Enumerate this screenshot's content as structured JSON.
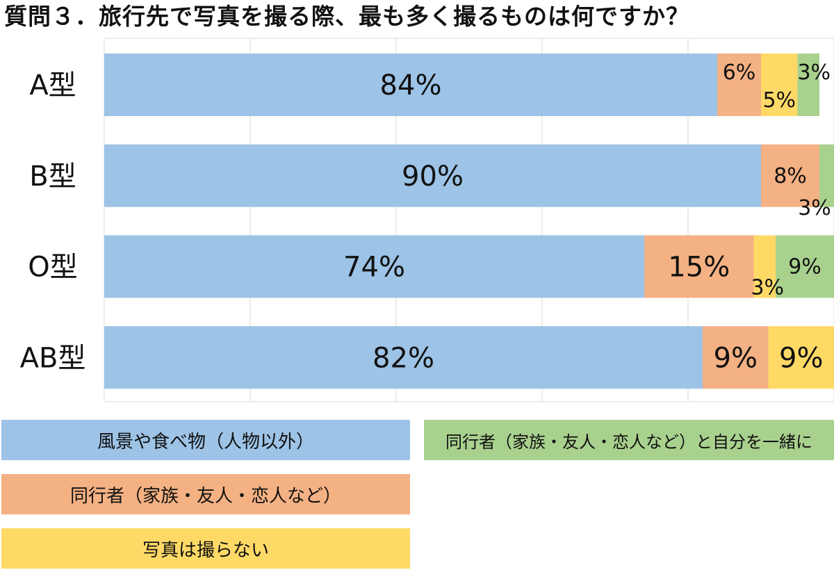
{
  "chart_data": {
    "type": "bar",
    "stacked": true,
    "orientation": "horizontal",
    "title": "質問３．旅行先で写真を撮る際、最も多く撮るものは何ですか？",
    "categories": [
      "A型",
      "B型",
      "O型",
      "AB型"
    ],
    "series": [
      {
        "name": "風景や食べ物（人物以外）",
        "color": "#9DC3E6",
        "values": [
          84,
          90,
          74,
          82
        ],
        "labels": [
          "84%",
          "90%",
          "74%",
          "82%"
        ]
      },
      {
        "name": "同行者（家族・友人・恋人など）",
        "color": "#F4B183",
        "values": [
          6,
          8,
          15,
          9
        ],
        "labels": [
          "6%",
          "8%",
          "15%",
          "9%"
        ]
      },
      {
        "name": "写真は撮らない",
        "color": "#FFD966",
        "values": [
          5,
          0,
          3,
          9
        ],
        "labels": [
          "5%",
          "",
          "3%",
          "9%"
        ]
      },
      {
        "name": "同行者（家族・友人・恋人など）と自分を一緒に",
        "color": "#A9D18E",
        "values": [
          3,
          3,
          9,
          0
        ],
        "labels": [
          "3%",
          "3%",
          "9%",
          ""
        ]
      }
    ],
    "xlim": [
      0,
      100
    ],
    "grid": true,
    "legend_position": "bottom"
  }
}
